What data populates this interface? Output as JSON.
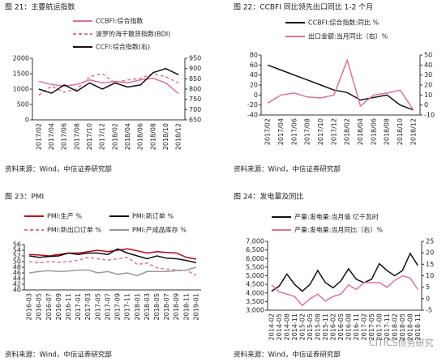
{
  "chart_data": [
    {
      "type": "line",
      "title": "图 21：主要航运指数",
      "source": "资料来源：Wind，中信证券研究部",
      "categories": [
        "2017/02",
        "2017/04",
        "2017/06",
        "2017/08",
        "2017/10",
        "2017/12",
        "2018/02",
        "2018/04",
        "2018/06",
        "2018/08",
        "2018/10",
        "2018/12"
      ],
      "series": [
        {
          "name": "CCBFI:综合指数",
          "color": "#e0738f",
          "style": "solid",
          "values": [
            1250,
            1150,
            1100,
            1150,
            1300,
            1200,
            1250,
            1200,
            1300,
            1350,
            1200,
            850
          ]
        },
        {
          "name": "波罗的海干散货指数(BDI)",
          "color": "#e0738f",
          "style": "dashed",
          "values": [
            800,
            1100,
            900,
            1000,
            1400,
            1500,
            1200,
            1300,
            1350,
            1500,
            1400,
            1200
          ]
        },
        {
          "name": "CCFI:综合指数(右)",
          "color": "#111111",
          "style": "solid",
          "axis": "y2",
          "values": [
            800,
            780,
            820,
            790,
            830,
            800,
            830,
            810,
            820,
            880,
            900,
            870
          ]
        }
      ],
      "ylim": [
        0,
        2000
      ],
      "yticks": [
        0,
        500,
        1000,
        1500,
        2000
      ],
      "y2lim": [
        650,
        950
      ],
      "y2ticks": [
        650,
        700,
        750,
        800,
        850,
        900,
        950
      ]
    },
    {
      "type": "line",
      "title": "图 22：CCBFI 同比领先出口同比 1-2 个月",
      "source": "资料来源：Wind，中信证券研究部",
      "categories": [
        "2017/02",
        "2017/04",
        "2017/06",
        "2017/08",
        "2017/10",
        "2017/12",
        "2018/02",
        "2018/04",
        "2018/06",
        "2018/08",
        "2018/10",
        "2018/12"
      ],
      "series": [
        {
          "name": "CCBFI:综合指数:同比 %",
          "color": "#111111",
          "style": "solid",
          "values": [
            60,
            50,
            40,
            30,
            20,
            10,
            5,
            -10,
            -5,
            0,
            -20,
            -30
          ]
        },
        {
          "name": "出口金额:当月同比（右）%",
          "color": "#e0738f",
          "style": "solid",
          "axis": "y2",
          "values": [
            2,
            10,
            12,
            8,
            7,
            10,
            45,
            -1,
            10,
            12,
            15,
            -5
          ]
        }
      ],
      "ylim": [
        -40,
        80
      ],
      "yticks": [
        -40,
        -20,
        0,
        20,
        40,
        60,
        80
      ],
      "y2lim": [
        -10,
        50
      ],
      "y2ticks": [
        -10,
        0,
        10,
        20,
        30,
        40,
        50
      ]
    },
    {
      "type": "line",
      "title": "图 23：PMI",
      "source": "资料来源：Wind，中信证券研究部",
      "categories": [
        "2016-03",
        "2016-05",
        "2016-07",
        "2016-09",
        "2016-11",
        "2017-01",
        "2017-03",
        "2017-05",
        "2017-07",
        "2017-09",
        "2017-11",
        "2018-01",
        "2018-03",
        "2018-05",
        "2018-07",
        "2018-09",
        "2018-11",
        "2019-01"
      ],
      "series": [
        {
          "name": "PMI:生产 %",
          "color": "#c0001a",
          "style": "solid",
          "values": [
            52.5,
            52.3,
            52.0,
            52.5,
            53.0,
            53.0,
            53.5,
            54.0,
            53.5,
            54.0,
            54.5,
            53.8,
            53.0,
            53.5,
            53.2,
            53.0,
            51.5,
            50.9
          ]
        },
        {
          "name": "PMI:新订单 %",
          "color": "#111111",
          "style": "solid",
          "values": [
            52,
            51.5,
            51.8,
            52,
            53,
            52.5,
            53,
            53,
            52.5,
            54.5,
            53,
            52,
            51,
            52,
            51.2,
            51,
            50.4,
            49.6
          ]
        },
        {
          "name": "PMI:新出口订单 %",
          "color": "#e0738f",
          "style": "dashed",
          "values": [
            50,
            49.5,
            50,
            49.8,
            50,
            50.5,
            51.5,
            51,
            50.5,
            51,
            51.5,
            49,
            49.5,
            47.8,
            47.3,
            47,
            46.9,
            45.2
          ]
        },
        {
          "name": "PMI:产成品库存 %",
          "color": "#999999",
          "style": "solid",
          "values": [
            46,
            46.5,
            46.8,
            46.5,
            46.7,
            47,
            47,
            46,
            46.5,
            45.5,
            46,
            45,
            46.5,
            46.5,
            46.5,
            46.8,
            47,
            48
          ]
        }
      ],
      "ylim": [
        40,
        56
      ],
      "yticks": [
        40,
        42,
        44,
        46,
        48,
        50,
        52,
        54,
        56
      ]
    },
    {
      "type": "line",
      "title": "图 24：发电量及同比",
      "source": "资料来源：Wind，中信证券研究部",
      "categories": [
        "2014-02",
        "2014-05",
        "2014-08",
        "2014-11",
        "2015-02",
        "2015-05",
        "2015-08",
        "2015-11",
        "2016-02",
        "2016-05",
        "2016-08",
        "2016-11",
        "2017-02",
        "2017-05",
        "2017-08",
        "2017-11",
        "2018-02",
        "2018-05",
        "2018-08",
        "2018-11"
      ],
      "series": [
        {
          "name": "产量:发电量:当月值 亿千瓦时",
          "color": "#111111",
          "style": "solid",
          "values": [
            4100,
            4400,
            5100,
            4500,
            4100,
            4500,
            5300,
            4600,
            4300,
            4700,
            5400,
            4800,
            4600,
            4800,
            5700,
            5300,
            5000,
            5300,
            6300,
            5600
          ]
        },
        {
          "name": "产量:发电量:当月同比（右）%",
          "color": "#e0738f",
          "style": "solid",
          "axis": "y2",
          "values": [
            6,
            3,
            2,
            1,
            -3,
            0,
            2,
            -1,
            1,
            2,
            6,
            4,
            7,
            7,
            7,
            5,
            8,
            10,
            9,
            4
          ]
        }
      ],
      "ylim": [
        3000,
        7000
      ],
      "yticks": [
        {
          "value": 3000,
          "label": "3,000"
        },
        {
          "value": 3500,
          "label": "3,500"
        },
        {
          "value": 4000,
          "label": "4,000"
        },
        {
          "value": 4500,
          "label": "4,500"
        },
        {
          "value": 5000,
          "label": "5,000"
        },
        {
          "value": 5500,
          "label": "5,500"
        },
        {
          "value": 6000,
          "label": "6,000"
        },
        {
          "value": 6500,
          "label": "6,500"
        },
        {
          "value": 7000,
          "label": "7,000"
        }
      ],
      "y2lim": [
        -5,
        25
      ],
      "y2ticks": [
        -5,
        0,
        5,
        10,
        15,
        20,
        25
      ]
    }
  ],
  "watermark": "CITICS债务研究"
}
